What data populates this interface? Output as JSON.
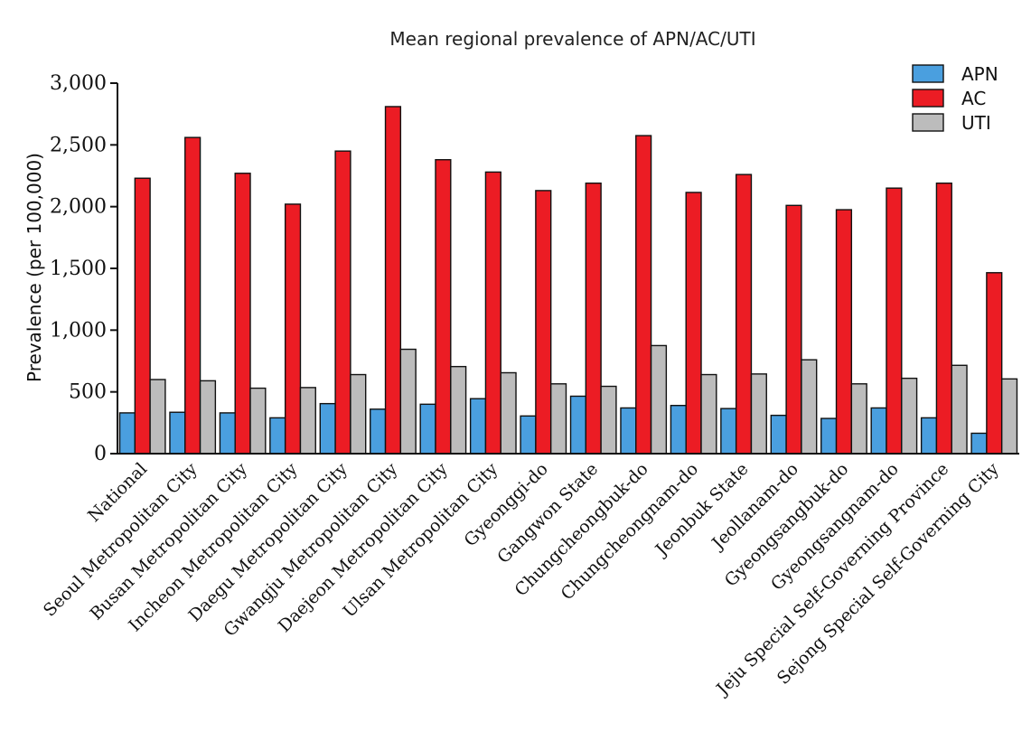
{
  "chart_data": {
    "type": "bar",
    "title": "Mean regional prevalence of APN/AC/UTI",
    "xlabel": "",
    "ylabel": "Prevalence (per 100,000)",
    "ylim": [
      0,
      3000
    ],
    "yticks": [
      0,
      500,
      1000,
      1500,
      2000,
      2500,
      3000
    ],
    "ytick_labels": [
      "0",
      "500",
      "1,000",
      "1,500",
      "2,000",
      "2,500",
      "3,000"
    ],
    "grid": false,
    "legend_position": "top-right",
    "categories": [
      "National",
      "Seoul Metropolitan City",
      "Busan Metropolitan City",
      "Incheon Metropolitan City",
      "Daegu Metropolitan City",
      "Gwangju Metropolitan City",
      "Daejeon Metropolitan City",
      "Ulsan Metropolitan City",
      "Gyeonggi-do",
      "Gangwon State",
      "Chungcheongbuk-do",
      "Chungcheongnam-do",
      "Jeonbuk State",
      "Jeollanam-do",
      "Gyeongsangbuk-do",
      "Gyeongsangnam-do",
      "Jeju Special Self-Governing Province",
      "Sejong Special Self-Governing City"
    ],
    "series": [
      {
        "name": "APN",
        "color": "#4a9fdf",
        "values": [
          330,
          335,
          330,
          290,
          405,
          360,
          400,
          445,
          305,
          465,
          370,
          390,
          365,
          310,
          285,
          370,
          290,
          165
        ]
      },
      {
        "name": "AC",
        "color": "#ec1c24",
        "values": [
          2230,
          2560,
          2270,
          2020,
          2450,
          2810,
          2380,
          2280,
          2130,
          2190,
          2575,
          2115,
          2260,
          2010,
          1975,
          2150,
          2190,
          1465
        ]
      },
      {
        "name": "UTI",
        "color": "#bcbcbc",
        "values": [
          600,
          590,
          530,
          535,
          640,
          845,
          705,
          655,
          565,
          545,
          875,
          640,
          645,
          760,
          565,
          610,
          715,
          605
        ]
      }
    ]
  }
}
